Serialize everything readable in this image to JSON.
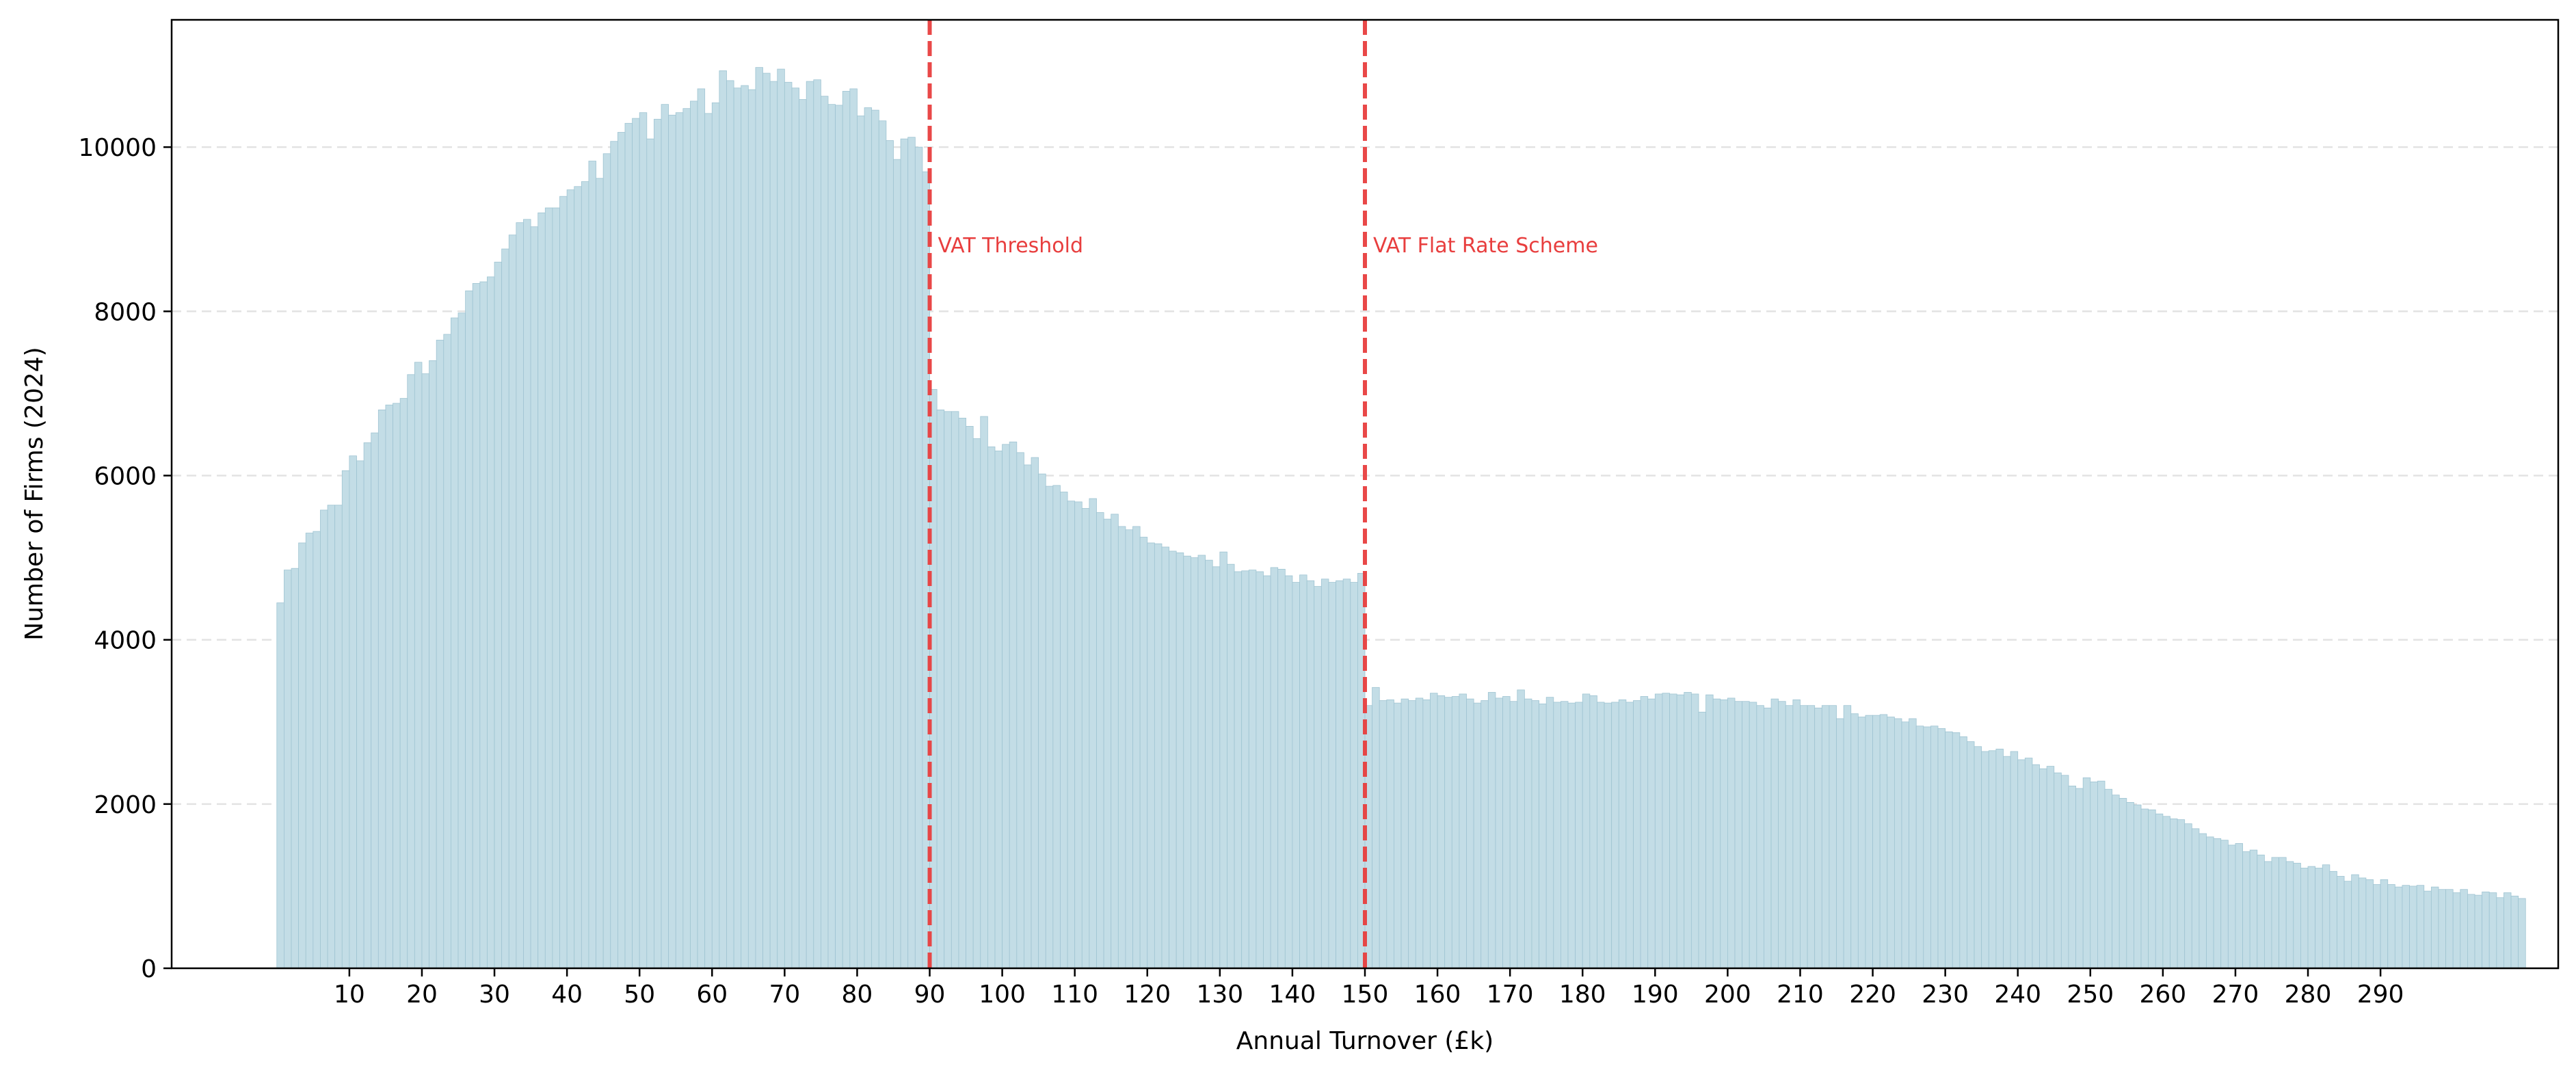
{
  "chart_data": {
    "type": "bar",
    "title": "",
    "xlabel": "Annual Turnover (£k)",
    "ylabel": "Number of Firms (2024)",
    "xlim": [
      -14.5,
      314.5
    ],
    "ylim": [
      0,
      11550
    ],
    "bin_width_k": 1,
    "x_ticks": [
      10,
      20,
      30,
      40,
      50,
      60,
      70,
      80,
      90,
      100,
      110,
      120,
      130,
      140,
      150,
      160,
      170,
      180,
      190,
      200,
      210,
      220,
      230,
      240,
      250,
      260,
      270,
      280,
      290
    ],
    "y_ticks": [
      0,
      2000,
      4000,
      6000,
      8000,
      10000
    ],
    "grid": "y-dashed",
    "bar_color": "#c3dde6",
    "bar_edge_color": "#9fc4d2",
    "annotations": [
      {
        "x": 90,
        "label": "VAT Threshold",
        "label_y": 8800,
        "color": "#e83e3e"
      },
      {
        "x": 150,
        "label": "VAT Flat Rate Scheme",
        "label_y": 8800,
        "color": "#e83e3e"
      }
    ],
    "series": [
      {
        "name": "Firms",
        "x_start": 0,
        "values": [
          4450,
          4850,
          4870,
          5180,
          5300,
          5320,
          5580,
          5640,
          5640,
          6060,
          6240,
          6180,
          6400,
          6520,
          6800,
          6860,
          6880,
          6940,
          7230,
          7380,
          7240,
          7400,
          7650,
          7720,
          7920,
          7980,
          8250,
          8340,
          8360,
          8420,
          8600,
          8760,
          8930,
          9080,
          9120,
          9030,
          9200,
          9260,
          9260,
          9400,
          9480,
          9520,
          9580,
          9830,
          9620,
          9920,
          10070,
          10180,
          10290,
          10350,
          10420,
          10100,
          10340,
          10520,
          10390,
          10420,
          10470,
          10560,
          10710,
          10410,
          10540,
          10930,
          10810,
          10720,
          10750,
          10700,
          10970,
          10900,
          10800,
          10950,
          10790,
          10720,
          10580,
          10800,
          10820,
          10620,
          10520,
          10510,
          10680,
          10710,
          10380,
          10480,
          10450,
          10320,
          10080,
          9850,
          10100,
          10120,
          10000,
          9700,
          7050,
          6800,
          6780,
          6780,
          6700,
          6600,
          6450,
          6720,
          6350,
          6300,
          6380,
          6410,
          6280,
          6130,
          6220,
          6020,
          5870,
          5880,
          5800,
          5690,
          5680,
          5600,
          5720,
          5550,
          5470,
          5530,
          5380,
          5340,
          5380,
          5250,
          5180,
          5170,
          5130,
          5080,
          5060,
          5020,
          5000,
          5030,
          4970,
          4890,
          5070,
          4920,
          4830,
          4840,
          4850,
          4830,
          4780,
          4880,
          4860,
          4780,
          4700,
          4790,
          4720,
          4650,
          4740,
          4700,
          4720,
          4740,
          4700,
          4810,
          3200,
          3420,
          3260,
          3270,
          3230,
          3280,
          3260,
          3290,
          3270,
          3350,
          3320,
          3300,
          3310,
          3340,
          3280,
          3230,
          3260,
          3360,
          3290,
          3310,
          3250,
          3390,
          3280,
          3260,
          3220,
          3300,
          3240,
          3250,
          3230,
          3240,
          3340,
          3320,
          3240,
          3230,
          3240,
          3270,
          3240,
          3260,
          3310,
          3280,
          3340,
          3350,
          3340,
          3330,
          3360,
          3340,
          3120,
          3330,
          3280,
          3270,
          3290,
          3250,
          3250,
          3240,
          3200,
          3170,
          3280,
          3250,
          3200,
          3270,
          3200,
          3200,
          3170,
          3200,
          3200,
          3040,
          3200,
          3100,
          3060,
          3080,
          3080,
          3090,
          3060,
          3040,
          3000,
          3040,
          2950,
          2940,
          2950,
          2920,
          2880,
          2870,
          2820,
          2760,
          2700,
          2640,
          2650,
          2670,
          2580,
          2640,
          2540,
          2560,
          2480,
          2430,
          2460,
          2380,
          2350,
          2220,
          2190,
          2320,
          2270,
          2280,
          2180,
          2110,
          2070,
          2020,
          1990,
          1940,
          1930,
          1880,
          1850,
          1820,
          1810,
          1760,
          1700,
          1640,
          1600,
          1580,
          1560,
          1500,
          1520,
          1420,
          1440,
          1380,
          1300,
          1350,
          1350,
          1300,
          1280,
          1220,
          1240,
          1220,
          1260,
          1180,
          1120,
          1060,
          1140,
          1100,
          1080,
          1020,
          1080,
          1020,
          990,
          1010,
          1000,
          1010,
          940,
          990,
          960,
          960,
          920,
          960,
          900,
          890,
          930,
          920,
          860,
          920,
          880,
          850
        ]
      }
    ]
  }
}
